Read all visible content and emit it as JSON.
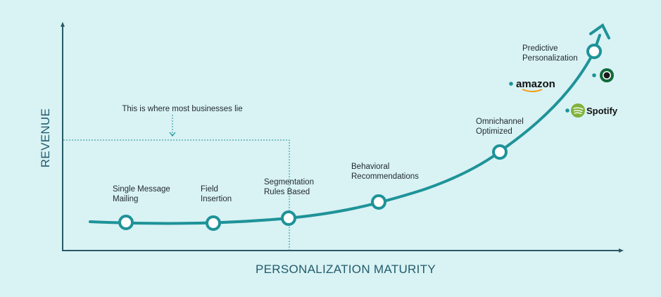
{
  "axes": {
    "y_label": "REVENUE",
    "x_label": "PERSONALIZATION MATURITY"
  },
  "annotation": "This is where most businesses lie",
  "stages": [
    {
      "line1": "Single Message",
      "line2": "Mailing",
      "level": 8
    },
    {
      "line1": "Field",
      "line2": "Insertion",
      "level": 8
    },
    {
      "line1": "Segmentation",
      "line2": "Rules Based",
      "level": 10
    },
    {
      "line1": "Behavioral",
      "line2": "Recommendations",
      "level": 17
    },
    {
      "line1": "Omnichannel",
      "line2": "Optimized",
      "level": 40
    },
    {
      "line1": "Predictive",
      "line2": "Personalization",
      "level": 86
    }
  ],
  "brands": [
    {
      "name": "amazon",
      "icon": "amazon-logo"
    },
    {
      "name": "Starbucks",
      "icon": "starbucks-logo"
    },
    {
      "name": "Spotify",
      "icon": "spotify-logo"
    }
  ],
  "colors": {
    "background": "#d9f2f4",
    "curve": "#1e9398",
    "axis": "#2a5a68",
    "text": "#1f2a30"
  }
}
